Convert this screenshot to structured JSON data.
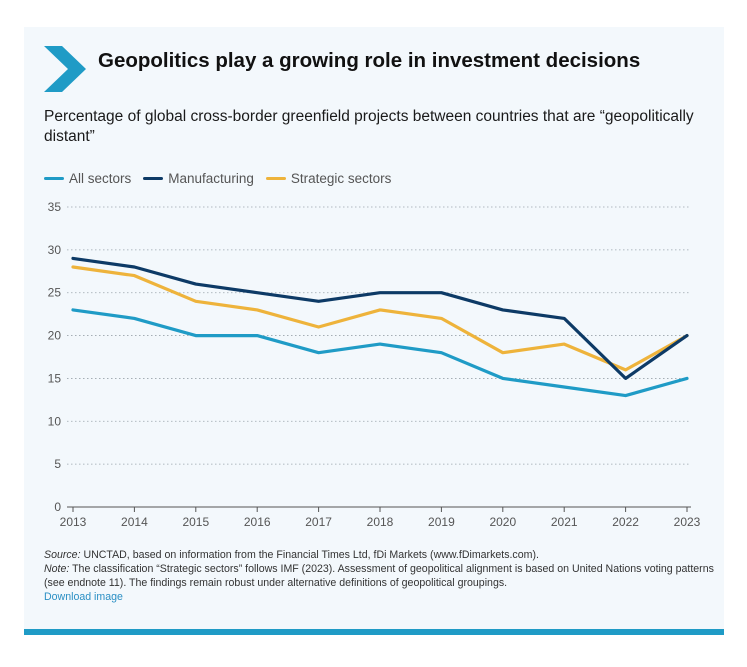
{
  "title": "Geopolitics play a growing role in investment decisions",
  "subtitle": "Percentage of global cross-border greenfield projects between countries that are “geopolitically distant”",
  "notes": {
    "source_label": "Source:",
    "source_text": " UNCTAD, based on information from the Financial Times Ltd, fDi Markets (www.fDimarkets.com).",
    "note_label": "Note:",
    "note_text": " The classification “Strategic sectors” follows IMF (2023). Assessment of geopolitical alignment is based on United Nations voting patterns (see endnote 11). The findings remain robust under alternative definitions of geopolitical groupings.",
    "download_label": "Download image"
  },
  "colors": {
    "accent": "#1f9bc6",
    "all_sectors": "#1f9bc6",
    "manufacturing": "#0d3a66",
    "strategic": "#eeb33b"
  },
  "chart_data": {
    "type": "line",
    "title": "Geopolitics play a growing role in investment decisions",
    "x": [
      2013,
      2014,
      2015,
      2016,
      2017,
      2018,
      2019,
      2020,
      2021,
      2022,
      2023
    ],
    "series": [
      {
        "name": "All sectors",
        "color": "#1f9bc6",
        "values": [
          23,
          22,
          20,
          20,
          18,
          19,
          18,
          15,
          14,
          13,
          15
        ]
      },
      {
        "name": "Manufacturing",
        "color": "#0d3a66",
        "values": [
          29,
          28,
          26,
          25,
          24,
          25,
          25,
          23,
          22,
          15,
          20
        ]
      },
      {
        "name": "Strategic sectors",
        "color": "#eeb33b",
        "values": [
          28,
          27,
          24,
          23,
          21,
          23,
          22,
          18,
          19,
          16,
          20
        ]
      }
    ],
    "yticks": [
      0,
      5,
      10,
      15,
      20,
      25,
      30,
      35
    ],
    "ylim": [
      0,
      35
    ],
    "xlabel": "",
    "ylabel": "",
    "grid": "horizontal dotted",
    "legend": "top-left"
  }
}
